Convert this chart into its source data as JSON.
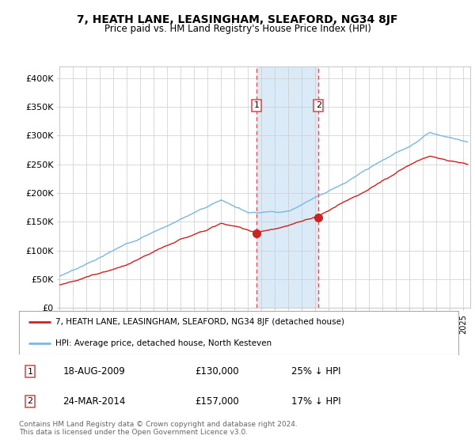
{
  "title": "7, HEATH LANE, LEASINGHAM, SLEAFORD, NG34 8JF",
  "subtitle": "Price paid vs. HM Land Registry's House Price Index (HPI)",
  "ylabel_ticks": [
    "£0",
    "£50K",
    "£100K",
    "£150K",
    "£200K",
    "£250K",
    "£300K",
    "£350K",
    "£400K"
  ],
  "ytick_values": [
    0,
    50000,
    100000,
    150000,
    200000,
    250000,
    300000,
    350000,
    400000
  ],
  "ylim": [
    0,
    420000
  ],
  "xlim_start": 1995.0,
  "xlim_end": 2025.5,
  "marker1_x": 2009.63,
  "marker1_y": 130000,
  "marker2_x": 2014.23,
  "marker2_y": 157000,
  "marker1_label": "1",
  "marker2_label": "2",
  "shade_color": "#daeaf6",
  "vline_color": "#e05050",
  "legend_line1": "7, HEATH LANE, LEASINGHAM, SLEAFORD, NG34 8JF (detached house)",
  "legend_line2": "HPI: Average price, detached house, North Kesteven",
  "table_row1_num": "1",
  "table_row1_date": "18-AUG-2009",
  "table_row1_price": "£130,000",
  "table_row1_hpi": "25% ↓ HPI",
  "table_row2_num": "2",
  "table_row2_date": "24-MAR-2014",
  "table_row2_price": "£157,000",
  "table_row2_hpi": "17% ↓ HPI",
  "footnote": "Contains HM Land Registry data © Crown copyright and database right 2024.\nThis data is licensed under the Open Government Licence v3.0.",
  "hpi_color": "#7ab8e0",
  "price_color": "#cc2222",
  "background_color": "#ffffff",
  "grid_color": "#cccccc",
  "label_box_color": "#e05050"
}
